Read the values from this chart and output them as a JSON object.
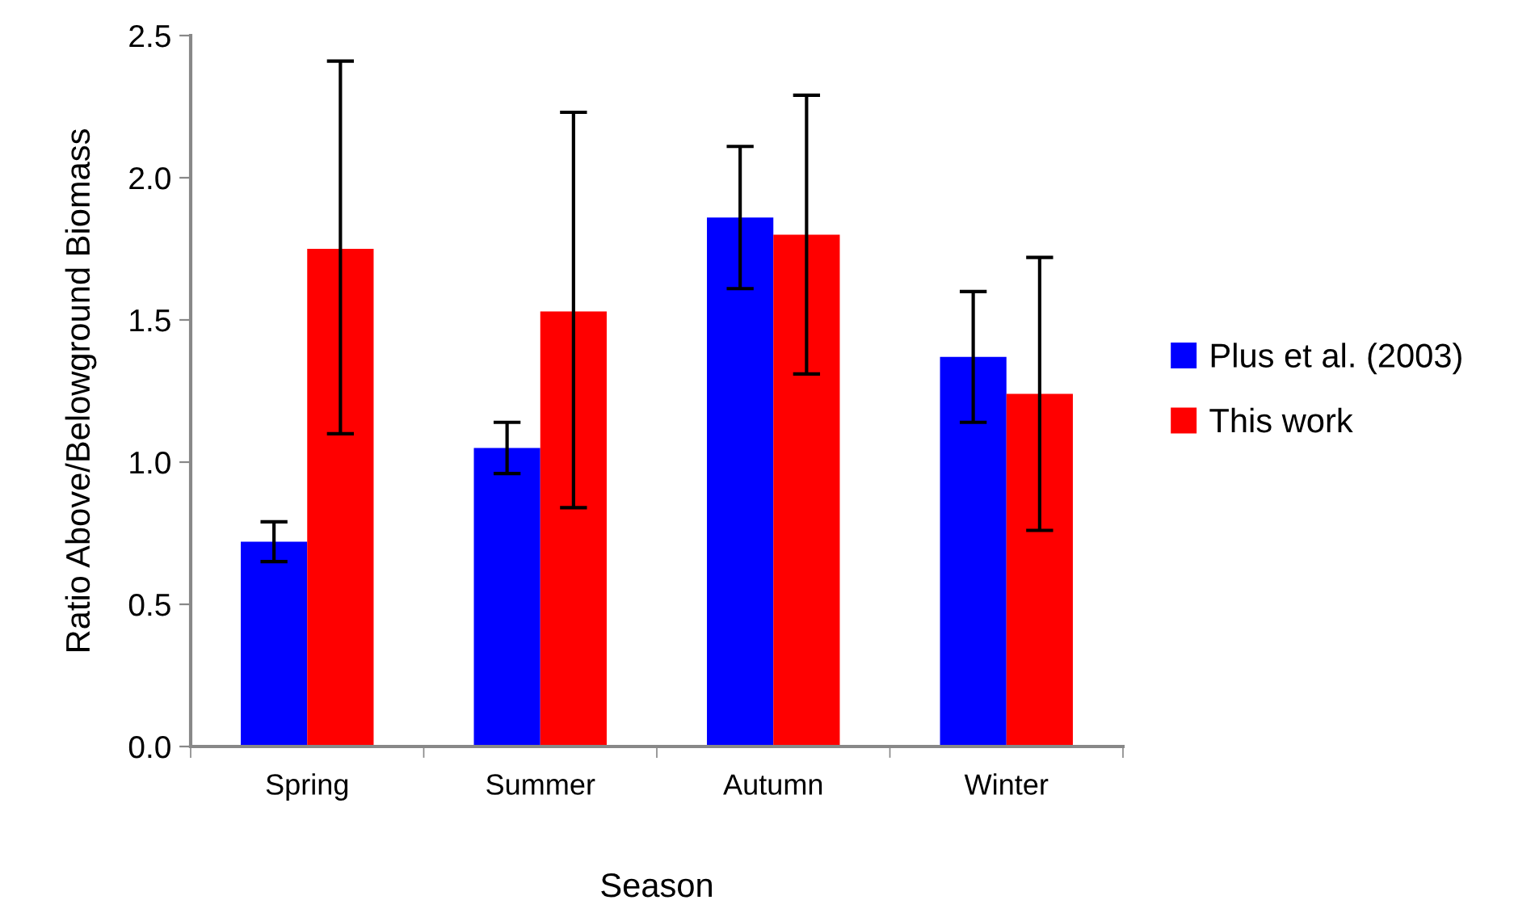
{
  "chart_data": {
    "type": "bar",
    "xlabel": "Season",
    "ylabel": "Ratio Above/Belowground Biomass",
    "categories": [
      "Spring",
      "Summer",
      "Autumn",
      "Winter"
    ],
    "series": [
      {
        "name": "Plus et al. (2003)",
        "color": "#0000ff",
        "values": [
          0.72,
          1.05,
          1.86,
          1.37
        ],
        "errors": [
          [
            0.65,
            0.79
          ],
          [
            0.96,
            1.14
          ],
          [
            1.61,
            2.11
          ],
          [
            1.14,
            1.6
          ]
        ]
      },
      {
        "name": "This work",
        "color": "#ff0000",
        "values": [
          1.75,
          1.53,
          1.8,
          1.24
        ],
        "errors": [
          [
            1.1,
            2.41
          ],
          [
            0.84,
            2.23
          ],
          [
            1.31,
            2.29
          ],
          [
            0.76,
            1.72
          ]
        ]
      }
    ],
    "ylim": [
      0,
      2.5
    ],
    "yticks": [
      {
        "value": 0,
        "label": "0.0"
      },
      {
        "value": 0.5,
        "label": "0.5"
      },
      {
        "value": 1,
        "label": "1.0"
      },
      {
        "value": 1.5,
        "label": "1.5"
      },
      {
        "value": 2,
        "label": "2.0"
      },
      {
        "value": 2.5,
        "label": "2.5"
      }
    ],
    "grid": false,
    "legend": "right"
  }
}
